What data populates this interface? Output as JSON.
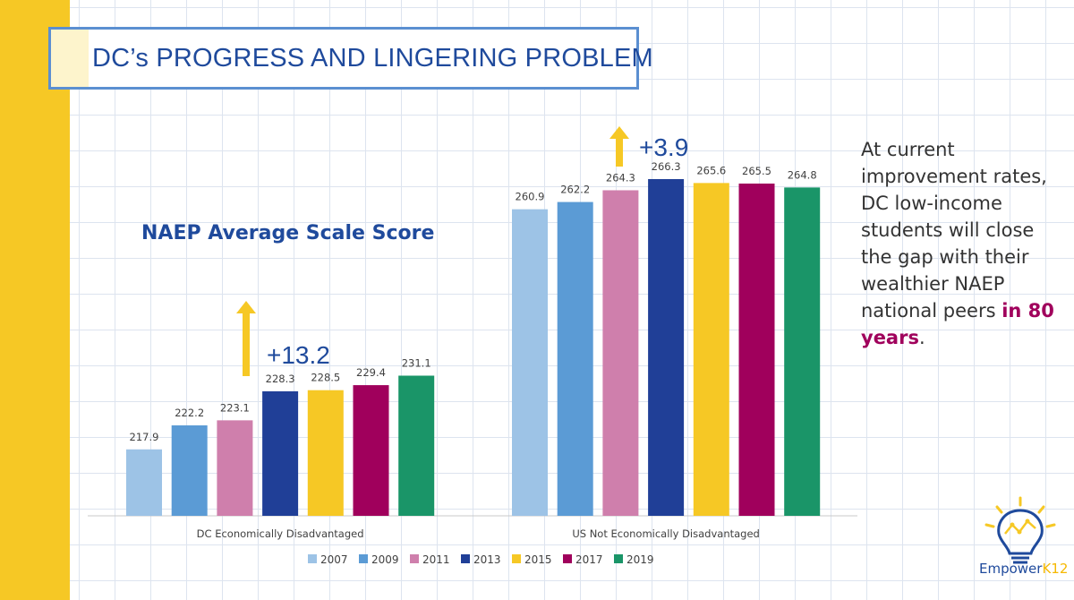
{
  "title": "DC’s PROGRESS AND LINGERING PROBLEM",
  "colors": {
    "accent_yellow": "#f6c825",
    "title_blue": "#1f4a9c",
    "highlight": "#a0005c"
  },
  "chart_data": {
    "type": "bar",
    "title": "NAEP Average Scale Score",
    "categories": [
      "DC Economically Disadvantaged",
      "US Not Economically Disadvantaged"
    ],
    "series": [
      {
        "name": "2007",
        "color": "#9dc3e6",
        "values": [
          217.9,
          260.9
        ]
      },
      {
        "name": "2009",
        "color": "#5b9bd5",
        "values": [
          222.2,
          262.2
        ]
      },
      {
        "name": "2011",
        "color": "#cf7fac",
        "values": [
          223.1,
          264.3
        ]
      },
      {
        "name": "2013",
        "color": "#203f97",
        "values": [
          228.3,
          266.3
        ]
      },
      {
        "name": "2015",
        "color": "#f6c825",
        "values": [
          228.5,
          265.6
        ]
      },
      {
        "name": "2017",
        "color": "#a0005c",
        "values": [
          229.4,
          265.5
        ]
      },
      {
        "name": "2019",
        "color": "#1a9568",
        "values": [
          231.1,
          264.8
        ]
      }
    ],
    "ylim": [
      206,
      270
    ],
    "grid": false,
    "legend": "bottom",
    "annotations": [
      "+13.2",
      "+3.9"
    ]
  },
  "callout": {
    "text": "At current improvement rates, DC low-income students will close the gap with their wealthier NAEP national peers ",
    "highlight": "in 80 years",
    "end": "."
  },
  "logo": {
    "name": "Empower",
    "suffix": "K12"
  }
}
